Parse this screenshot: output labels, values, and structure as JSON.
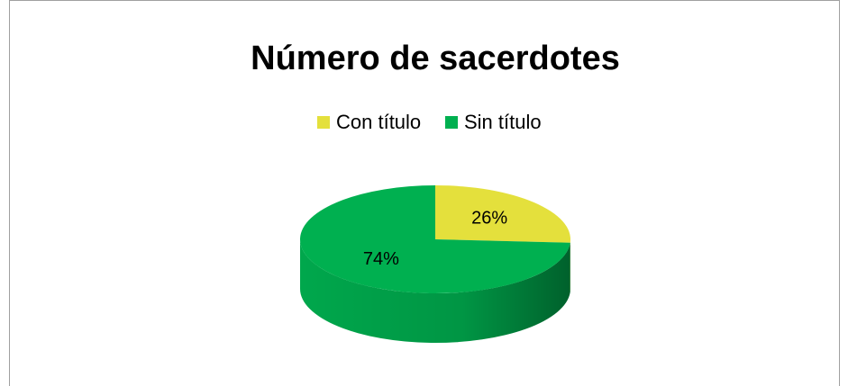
{
  "chart_data": {
    "type": "pie",
    "title": "Número de sacerdotes",
    "categories": [
      "Con título",
      "Sin título"
    ],
    "values": [
      26,
      74
    ],
    "value_labels": [
      "26%",
      "74%"
    ],
    "colors": [
      "#e4e03c",
      "#00b050"
    ],
    "legend": "top"
  }
}
